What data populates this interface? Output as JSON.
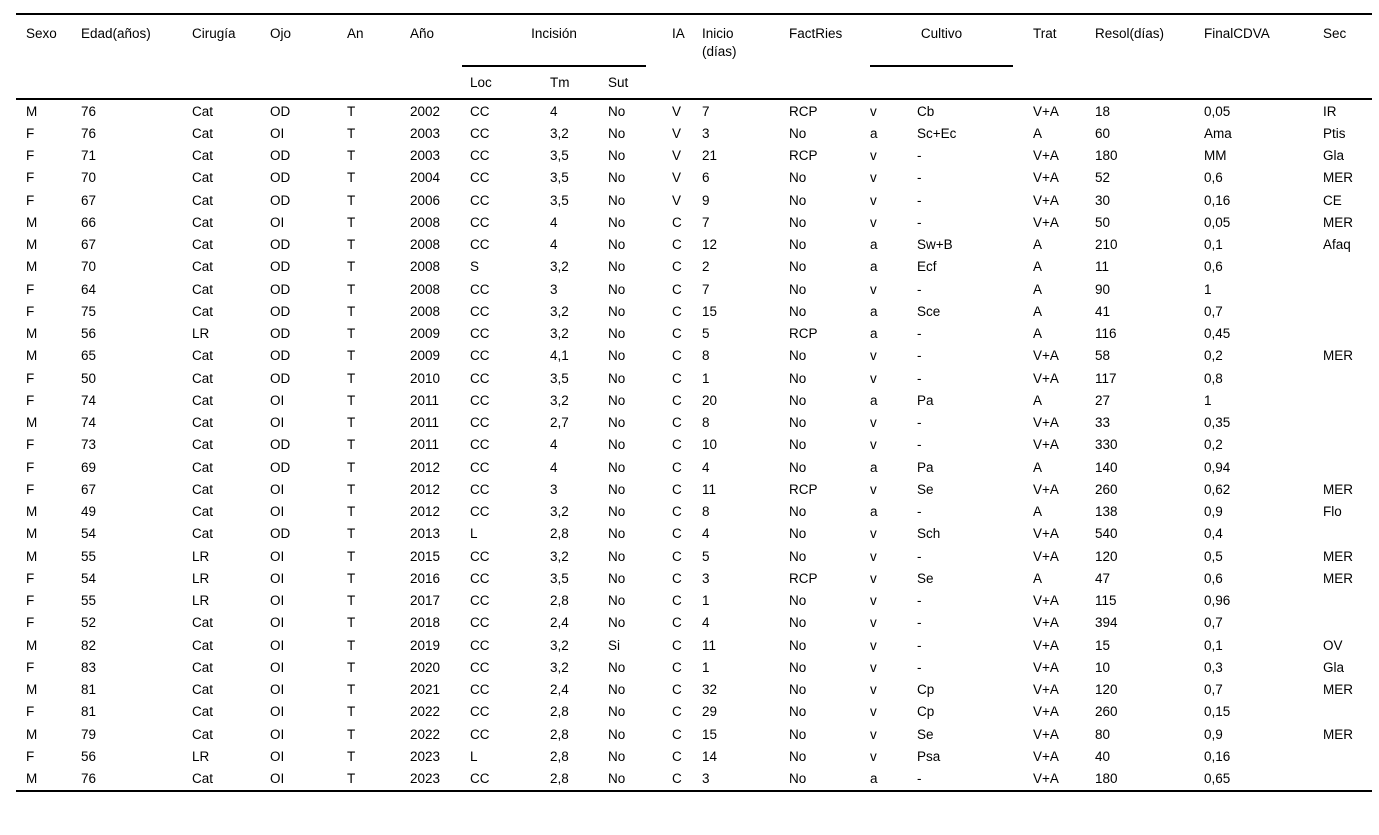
{
  "chart_data": {
    "type": "table",
    "title": "",
    "colors": {
      "text": "#000000",
      "background": "#ffffff",
      "rule": "#000000"
    },
    "headers": {
      "sexo": "Sexo",
      "edad": "Edad(años)",
      "cirugia": "Cirugía",
      "ojo": "Ojo",
      "an": "An",
      "ano": "Año",
      "incision_group": "Incisión",
      "loc": "Loc",
      "tm": "Tm",
      "sut": "Sut",
      "ia": "IA",
      "inicio_line1": "Inicio",
      "inicio_line2": "(días)",
      "factries": "FactRies",
      "cultivo_group": "Cultivo",
      "trat": "Trat",
      "resol": "Resol(días)",
      "finalcdva": "FinalCDVA",
      "sec": "Sec"
    },
    "column_keys": [
      "sexo",
      "edad",
      "cirugia",
      "ojo",
      "an",
      "ano",
      "loc",
      "tm",
      "sut",
      "ia",
      "inicio",
      "factries",
      "cultivo_va",
      "cultivo_org",
      "trat",
      "resol",
      "finalcdva",
      "sec"
    ],
    "rows": [
      [
        "M",
        "76",
        "Cat",
        "OD",
        "T",
        "2002",
        "CC",
        "4",
        "No",
        "V",
        "7",
        "RCP",
        "v",
        "Cb",
        "V+A",
        "18",
        "0,05",
        "IR"
      ],
      [
        "F",
        "76",
        "Cat",
        "OI",
        "T",
        "2003",
        "CC",
        "3,2",
        "No",
        "V",
        "3",
        "No",
        "a",
        "Sc+Ec",
        "A",
        "60",
        "Ama",
        "Ptis"
      ],
      [
        "F",
        "71",
        "Cat",
        "OD",
        "T",
        "2003",
        "CC",
        "3,5",
        "No",
        "V",
        "21",
        "RCP",
        "v",
        "-",
        "V+A",
        "180",
        "MM",
        "Gla"
      ],
      [
        "F",
        "70",
        "Cat",
        "OD",
        "T",
        "2004",
        "CC",
        "3,5",
        "No",
        "V",
        "6",
        "No",
        "v",
        "-",
        "V+A",
        "52",
        "0,6",
        "MER"
      ],
      [
        "F",
        "67",
        "Cat",
        "OD",
        "T",
        "2006",
        "CC",
        "3,5",
        "No",
        "V",
        "9",
        "No",
        "v",
        "-",
        "V+A",
        "30",
        "0,16",
        "CE"
      ],
      [
        "M",
        "66",
        "Cat",
        "OI",
        "T",
        "2008",
        "CC",
        "4",
        "No",
        "C",
        "7",
        "No",
        "v",
        "-",
        "V+A",
        "50",
        "0,05",
        "MER"
      ],
      [
        "M",
        "67",
        "Cat",
        "OD",
        "T",
        "2008",
        "CC",
        "4",
        "No",
        "C",
        "12",
        "No",
        "a",
        "Sw+B",
        "A",
        "210",
        "0,1",
        "Afaq"
      ],
      [
        "M",
        "70",
        "Cat",
        "OD",
        "T",
        "2008",
        "S",
        "3,2",
        "No",
        "C",
        "2",
        "No",
        "a",
        "Ecf",
        "A",
        "11",
        "0,6",
        ""
      ],
      [
        "F",
        "64",
        "Cat",
        "OD",
        "T",
        "2008",
        "CC",
        "3",
        "No",
        "C",
        "7",
        "No",
        "v",
        "-",
        "A",
        "90",
        "1",
        ""
      ],
      [
        "F",
        "75",
        "Cat",
        "OD",
        "T",
        "2008",
        "CC",
        "3,2",
        "No",
        "C",
        "15",
        "No",
        "a",
        "Sce",
        "A",
        "41",
        "0,7",
        ""
      ],
      [
        "M",
        "56",
        "LR",
        "OD",
        "T",
        "2009",
        "CC",
        "3,2",
        "No",
        "C",
        "5",
        "RCP",
        "a",
        "-",
        "A",
        "116",
        "0,45",
        ""
      ],
      [
        "M",
        "65",
        "Cat",
        "OD",
        "T",
        "2009",
        "CC",
        "4,1",
        "No",
        "C",
        "8",
        "No",
        "v",
        "-",
        "V+A",
        "58",
        "0,2",
        "MER"
      ],
      [
        "F",
        "50",
        "Cat",
        "OD",
        "T",
        "2010",
        "CC",
        "3,5",
        "No",
        "C",
        "1",
        "No",
        "v",
        "-",
        "V+A",
        "117",
        "0,8",
        ""
      ],
      [
        "F",
        "74",
        "Cat",
        "OI",
        "T",
        "2011",
        "CC",
        "3,2",
        "No",
        "C",
        "20",
        "No",
        "a",
        "Pa",
        "A",
        "27",
        "1",
        ""
      ],
      [
        "M",
        "74",
        "Cat",
        "OI",
        "T",
        "2011",
        "CC",
        "2,7",
        "No",
        "C",
        "8",
        "No",
        "v",
        "-",
        "V+A",
        "33",
        "0,35",
        ""
      ],
      [
        "F",
        "73",
        "Cat",
        "OD",
        "T",
        "2011",
        "CC",
        "4",
        "No",
        "C",
        "10",
        "No",
        "v",
        "-",
        "V+A",
        "330",
        "0,2",
        ""
      ],
      [
        "F",
        "69",
        "Cat",
        "OD",
        "T",
        "2012",
        "CC",
        "4",
        "No",
        "C",
        "4",
        "No",
        "a",
        "Pa",
        "A",
        "140",
        "0,94",
        ""
      ],
      [
        "F",
        "67",
        "Cat",
        "OI",
        "T",
        "2012",
        "CC",
        "3",
        "No",
        "C",
        "11",
        "RCP",
        "v",
        "Se",
        "V+A",
        "260",
        "0,62",
        "MER"
      ],
      [
        "M",
        "49",
        "Cat",
        "OI",
        "T",
        "2012",
        "CC",
        "3,2",
        "No",
        "C",
        "8",
        "No",
        "a",
        "-",
        "A",
        "138",
        "0,9",
        "Flo"
      ],
      [
        "M",
        "54",
        "Cat",
        "OD",
        "T",
        "2013",
        "L",
        "2,8",
        "No",
        "C",
        "4",
        "No",
        "v",
        "Sch",
        "V+A",
        "540",
        "0,4",
        ""
      ],
      [
        "M",
        "55",
        "LR",
        "OI",
        "T",
        "2015",
        "CC",
        "3,2",
        "No",
        "C",
        "5",
        "No",
        "v",
        "-",
        "V+A",
        "120",
        "0,5",
        "MER"
      ],
      [
        "F",
        "54",
        "LR",
        "OI",
        "T",
        "2016",
        "CC",
        "3,5",
        "No",
        "C",
        "3",
        "RCP",
        "v",
        "Se",
        "A",
        "47",
        "0,6",
        "MER"
      ],
      [
        "F",
        "55",
        "LR",
        "OI",
        "T",
        "2017",
        "CC",
        "2,8",
        "No",
        "C",
        "1",
        "No",
        "v",
        "-",
        "V+A",
        "115",
        "0,96",
        ""
      ],
      [
        "F",
        "52",
        "Cat",
        "OI",
        "T",
        "2018",
        "CC",
        "2,4",
        "No",
        "C",
        "4",
        "No",
        "v",
        "-",
        "V+A",
        "394",
        "0,7",
        ""
      ],
      [
        "M",
        "82",
        "Cat",
        "OI",
        "T",
        "2019",
        "CC",
        "3,2",
        "Si",
        "C",
        "11",
        "No",
        "v",
        "-",
        "V+A",
        "15",
        "0,1",
        "OV"
      ],
      [
        "F",
        "83",
        "Cat",
        "OI",
        "T",
        "2020",
        "CC",
        "3,2",
        "No",
        "C",
        "1",
        "No",
        "v",
        "-",
        "V+A",
        "10",
        "0,3",
        "Gla"
      ],
      [
        "M",
        "81",
        "Cat",
        "OI",
        "T",
        "2021",
        "CC",
        "2,4",
        "No",
        "C",
        "32",
        "No",
        "v",
        "Cp",
        "V+A",
        "120",
        "0,7",
        "MER"
      ],
      [
        "F",
        "81",
        "Cat",
        "OI",
        "T",
        "2022",
        "CC",
        "2,8",
        "No",
        "C",
        "29",
        "No",
        "v",
        "Cp",
        "V+A",
        "260",
        "0,15",
        ""
      ],
      [
        "M",
        "79",
        "Cat",
        "OI",
        "T",
        "2022",
        "CC",
        "2,8",
        "No",
        "C",
        "15",
        "No",
        "v",
        "Se",
        "V+A",
        "80",
        "0,9",
        "MER"
      ],
      [
        "F",
        "56",
        "LR",
        "OI",
        "T",
        "2023",
        "L",
        "2,8",
        "No",
        "C",
        "14",
        "No",
        "v",
        "Psa",
        "V+A",
        "40",
        "0,16",
        ""
      ],
      [
        "M",
        "76",
        "Cat",
        "OI",
        "T",
        "2023",
        "CC",
        "2,8",
        "No",
        "C",
        "3",
        "No",
        "a",
        "-",
        "V+A",
        "180",
        "0,65",
        ""
      ]
    ]
  }
}
